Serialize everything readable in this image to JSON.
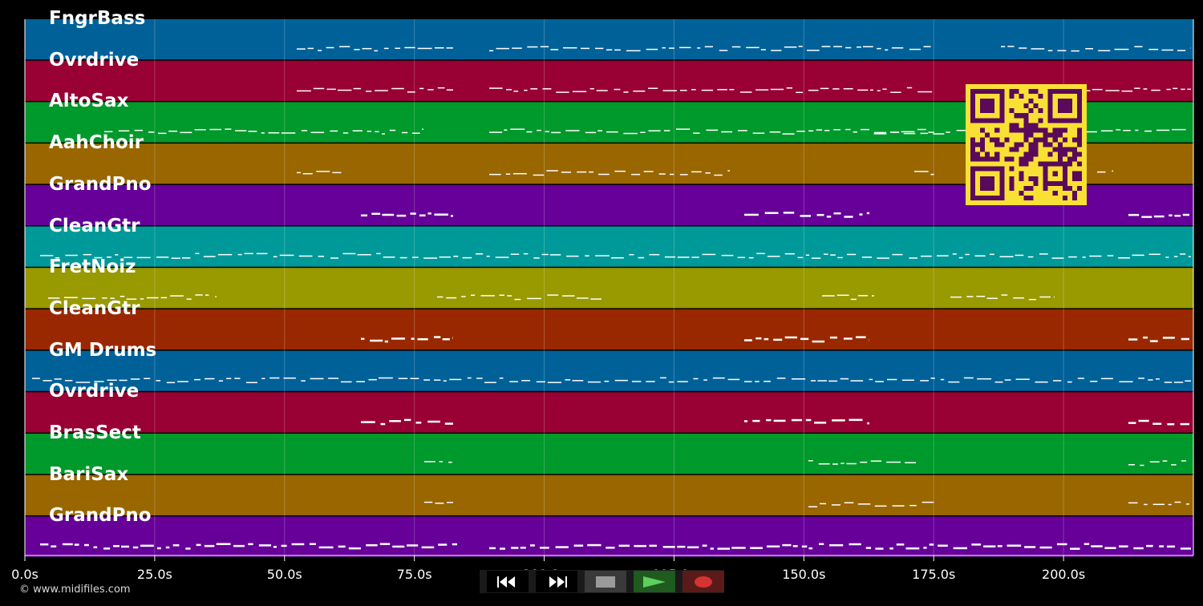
{
  "tracks": [
    {
      "name": "FngrBass",
      "color": "#006199"
    },
    {
      "name": "Ovrdrive",
      "color": "#990033"
    },
    {
      "name": "AltoSax",
      "color": "#00992b"
    },
    {
      "name": "AahChoir",
      "color": "#996600"
    },
    {
      "name": "GrandPno",
      "color": "#660099"
    },
    {
      "name": "CleanGtr",
      "color": "#009999"
    },
    {
      "name": "FretNoiz",
      "color": "#999900"
    },
    {
      "name": "CleanGtr",
      "color": "#992800"
    },
    {
      "name": "GM Drums",
      "color": "#006199"
    },
    {
      "name": "Ovrdrive",
      "color": "#990033"
    },
    {
      "name": "BrasSect",
      "color": "#00992b"
    },
    {
      "name": "BariSax",
      "color": "#996600"
    },
    {
      "name": "GrandPno",
      "color": "#660099"
    }
  ],
  "timeline": {
    "ticks": [
      "0.0s",
      "25.0s",
      "50.0s",
      "75.0s",
      "100.0s",
      "125.0s",
      "150.0s",
      "175.0s",
      "200.0s"
    ]
  },
  "credit": "© www.midifiles.com",
  "transport": {
    "buttons": [
      {
        "name": "rewind-button",
        "icon": "rewind-icon"
      },
      {
        "name": "fast-forward-button",
        "icon": "fast-forward-icon"
      },
      {
        "name": "stop-button",
        "icon": "stop-icon"
      },
      {
        "name": "play-button",
        "icon": "play-icon"
      },
      {
        "name": "record-button",
        "icon": "record-icon"
      }
    ]
  },
  "qr_code": {
    "icon": "qr-code-icon",
    "fg": "#5a0a5a",
    "bg": "#f9e035"
  }
}
